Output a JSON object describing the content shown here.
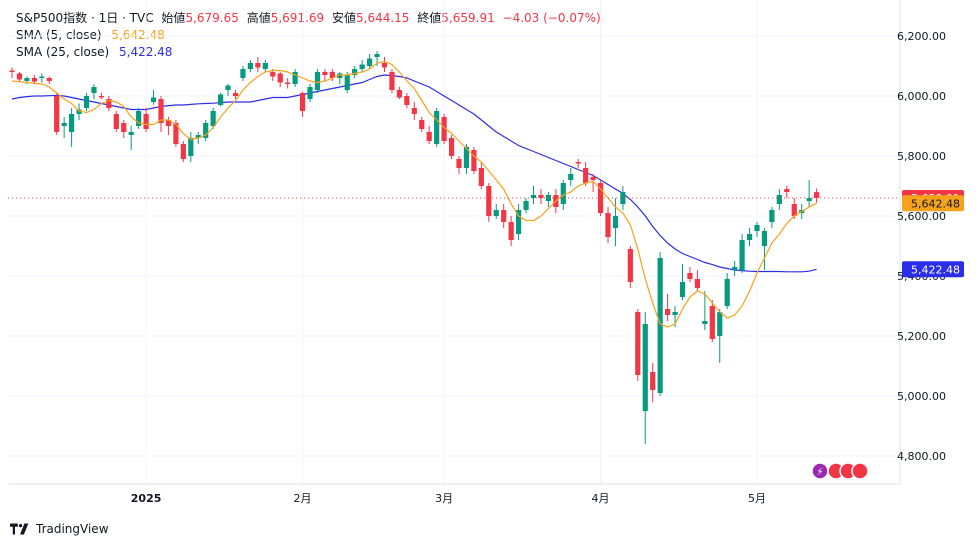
{
  "legend": {
    "symbol": "S&P500指数",
    "interval": "1日",
    "source": "TVC",
    "open_label": "始値",
    "open": "5,679.65",
    "high_label": "高値",
    "high": "5,691.69",
    "low_label": "安値",
    "low": "5,644.15",
    "close_label": "終値",
    "close": "5,659.91",
    "change": "−4.03 (−0.07%)",
    "sma5_label": "SMA (5, close)",
    "sma5_value": "5,642.48",
    "sma25_label": "SMA (25, close)",
    "sma25_value": "5,422.48"
  },
  "brand": {
    "name": "TradingView"
  },
  "colors": {
    "up": "#089981",
    "down": "#f23645",
    "sma5": "#f7a21b",
    "sma25": "#2a2ee8",
    "grid": "#f0f3fa",
    "price_line": "#f23645"
  },
  "chart_data": {
    "type": "candlestick",
    "y_axis": {
      "ticks": [
        4800,
        5000,
        5200,
        5400,
        5600,
        5800,
        6000,
        6200
      ],
      "range": [
        4700,
        6250
      ]
    },
    "y_tick_labels": [
      "4,800.00",
      "5,000.00",
      "5,200.00",
      "5,400.00",
      "5,600.00",
      "5,800.00",
      "6,000.00",
      "6,200.00"
    ],
    "x_axis": {
      "labels": [
        {
          "text": "2025",
          "index": 18
        },
        {
          "text": "2月",
          "index": 39
        },
        {
          "text": "3月",
          "index": 58
        },
        {
          "text": "4月",
          "index": 79
        },
        {
          "text": "5月",
          "index": 100
        }
      ]
    },
    "price_tags": {
      "last": "5,659.91",
      "sma5": "5,642.48",
      "sma25": "5,422.48"
    },
    "ohlc": [
      [
        6085,
        6095,
        6060,
        6080
      ],
      [
        6075,
        6080,
        6050,
        6055
      ],
      [
        6050,
        6065,
        6040,
        6060
      ],
      [
        6060,
        6070,
        6040,
        6048
      ],
      [
        6060,
        6075,
        6045,
        6065
      ],
      [
        6060,
        6065,
        6040,
        6050
      ],
      [
        6000,
        6010,
        5870,
        5880
      ],
      [
        5900,
        5930,
        5860,
        5910
      ],
      [
        5880,
        5960,
        5830,
        5940
      ],
      [
        5940,
        5975,
        5920,
        5955
      ],
      [
        5960,
        6010,
        5950,
        6000
      ],
      [
        6010,
        6040,
        5990,
        6030
      ],
      [
        6000,
        6010,
        5990,
        5995
      ],
      [
        5990,
        6000,
        5950,
        5960
      ],
      [
        5940,
        5950,
        5880,
        5890
      ],
      [
        5910,
        5920,
        5860,
        5880
      ],
      [
        5870,
        5900,
        5820,
        5880
      ],
      [
        5900,
        5960,
        5890,
        5950
      ],
      [
        5940,
        5960,
        5880,
        5890
      ],
      [
        5980,
        6020,
        5970,
        5995
      ],
      [
        5990,
        6000,
        5880,
        5910
      ],
      [
        5920,
        5930,
        5870,
        5900
      ],
      [
        5910,
        5920,
        5830,
        5840
      ],
      [
        5840,
        5850,
        5780,
        5790
      ],
      [
        5800,
        5880,
        5780,
        5860
      ],
      [
        5860,
        5880,
        5840,
        5870
      ],
      [
        5860,
        5920,
        5850,
        5910
      ],
      [
        5900,
        5960,
        5890,
        5950
      ],
      [
        5970,
        6010,
        5965,
        6005
      ],
      [
        6020,
        6040,
        6000,
        6035
      ],
      [
        6010,
        6020,
        5990,
        6000
      ],
      [
        6060,
        6100,
        6050,
        6090
      ],
      [
        6090,
        6120,
        6080,
        6110
      ],
      [
        6110,
        6130,
        6080,
        6095
      ],
      [
        6090,
        6120,
        6080,
        6110
      ],
      [
        6080,
        6090,
        6050,
        6065
      ],
      [
        6075,
        6080,
        6030,
        6045
      ],
      [
        6045,
        6060,
        6025,
        6040
      ],
      [
        6040,
        6090,
        6030,
        6080
      ],
      [
        6010,
        6015,
        5930,
        5950
      ],
      [
        5990,
        6040,
        5980,
        6030
      ],
      [
        6020,
        6090,
        6010,
        6080
      ],
      [
        6080,
        6090,
        6050,
        6070
      ],
      [
        6080,
        6090,
        6050,
        6060
      ],
      [
        6060,
        6080,
        6040,
        6075
      ],
      [
        6020,
        6080,
        6010,
        6070
      ],
      [
        6070,
        6100,
        6060,
        6090
      ],
      [
        6090,
        6120,
        6080,
        6105
      ],
      [
        6100,
        6140,
        6090,
        6125
      ],
      [
        6130,
        6150,
        6100,
        6140
      ],
      [
        6110,
        6130,
        6080,
        6095
      ],
      [
        6080,
        6090,
        6010,
        6020
      ],
      [
        6020,
        6030,
        5990,
        5995
      ],
      [
        6000,
        6010,
        5960,
        5970
      ],
      [
        5960,
        5980,
        5920,
        5940
      ],
      [
        5920,
        5930,
        5880,
        5890
      ],
      [
        5880,
        5900,
        5840,
        5850
      ],
      [
        5840,
        5960,
        5830,
        5950
      ],
      [
        5930,
        5940,
        5840,
        5850
      ],
      [
        5860,
        5870,
        5790,
        5800
      ],
      [
        5790,
        5800,
        5740,
        5760
      ],
      [
        5760,
        5840,
        5740,
        5830
      ],
      [
        5820,
        5830,
        5740,
        5750
      ],
      [
        5760,
        5780,
        5690,
        5700
      ],
      [
        5700,
        5710,
        5580,
        5600
      ],
      [
        5600,
        5640,
        5590,
        5620
      ],
      [
        5620,
        5640,
        5560,
        5580
      ],
      [
        5580,
        5600,
        5500,
        5520
      ],
      [
        5540,
        5640,
        5520,
        5620
      ],
      [
        5620,
        5660,
        5610,
        5650
      ],
      [
        5660,
        5700,
        5640,
        5670
      ],
      [
        5670,
        5690,
        5640,
        5660
      ],
      [
        5650,
        5680,
        5630,
        5670
      ],
      [
        5670,
        5690,
        5610,
        5630
      ],
      [
        5640,
        5720,
        5620,
        5710
      ],
      [
        5720,
        5760,
        5700,
        5740
      ],
      [
        5780,
        5790,
        5760,
        5775
      ],
      [
        5760,
        5780,
        5700,
        5710
      ],
      [
        5730,
        5740,
        5680,
        5720
      ],
      [
        5710,
        5720,
        5600,
        5610
      ],
      [
        5610,
        5630,
        5510,
        5530
      ],
      [
        5560,
        5660,
        5500,
        5600
      ],
      [
        5640,
        5700,
        5620,
        5680
      ],
      [
        5490,
        5500,
        5360,
        5380
      ],
      [
        5280,
        5290,
        5050,
        5070
      ],
      [
        4950,
        5280,
        4840,
        5240
      ],
      [
        5080,
        5110,
        4980,
        5020
      ],
      [
        5010,
        5480,
        5000,
        5460
      ],
      [
        5290,
        5340,
        5250,
        5270
      ],
      [
        5270,
        5300,
        5230,
        5280
      ],
      [
        5330,
        5440,
        5320,
        5380
      ],
      [
        5410,
        5430,
        5380,
        5390
      ],
      [
        5390,
        5420,
        5350,
        5360
      ],
      [
        5240,
        5350,
        5220,
        5250
      ],
      [
        5300,
        5320,
        5180,
        5190
      ],
      [
        5200,
        5290,
        5110,
        5280
      ],
      [
        5300,
        5410,
        5290,
        5390
      ],
      [
        5420,
        5450,
        5400,
        5430
      ],
      [
        5420,
        5540,
        5410,
        5520
      ],
      [
        5520,
        5560,
        5500,
        5540
      ],
      [
        5550,
        5580,
        5530,
        5570
      ],
      [
        5500,
        5560,
        5420,
        5550
      ],
      [
        5580,
        5630,
        5560,
        5620
      ],
      [
        5640,
        5690,
        5620,
        5670
      ],
      [
        5690,
        5700,
        5660,
        5680
      ],
      [
        5640,
        5660,
        5590,
        5600
      ],
      [
        5610,
        5640,
        5590,
        5620
      ],
      [
        5650,
        5720,
        5630,
        5660
      ],
      [
        5679.65,
        5691.69,
        5644.15,
        5659.91
      ]
    ],
    "sma5": [
      6050,
      6048,
      6045,
      6042,
      6040,
      6030,
      6010,
      5990,
      5975,
      5950,
      5945,
      5955,
      5975,
      5985,
      5980,
      5965,
      5930,
      5910,
      5905,
      5905,
      5920,
      5920,
      5905,
      5875,
      5855,
      5860,
      5870,
      5895,
      5930,
      5960,
      5985,
      6020,
      6045,
      6065,
      6080,
      6085,
      6085,
      6080,
      6070,
      6060,
      6050,
      6045,
      6050,
      6060,
      6070,
      6070,
      6075,
      6080,
      6090,
      6110,
      6115,
      6105,
      6080,
      6050,
      6025,
      5985,
      5945,
      5920,
      5895,
      5875,
      5850,
      5825,
      5800,
      5780,
      5750,
      5720,
      5690,
      5640,
      5600,
      5585,
      5585,
      5600,
      5625,
      5650,
      5670,
      5680,
      5700,
      5710,
      5715,
      5690,
      5660,
      5630,
      5610,
      5570,
      5490,
      5390,
      5310,
      5240,
      5230,
      5240,
      5290,
      5330,
      5350,
      5340,
      5310,
      5280,
      5260,
      5270,
      5300,
      5350,
      5410,
      5460,
      5510,
      5540,
      5575,
      5600,
      5615,
      5630,
      5642.48
    ],
    "sma25": [
      5990,
      5995,
      5998,
      6000,
      6000,
      6001,
      6002,
      6000,
      5995,
      5990,
      5985,
      5980,
      5975,
      5970,
      5965,
      5960,
      5955,
      5955,
      5955,
      5960,
      5965,
      5968,
      5970,
      5970,
      5972,
      5974,
      5975,
      5976,
      5978,
      5980,
      5980,
      5980,
      5980,
      5985,
      5990,
      5995,
      5995,
      5995,
      6000,
      6005,
      6010,
      6015,
      6020,
      6025,
      6030,
      6035,
      6040,
      6045,
      6055,
      6065,
      6070,
      6068,
      6065,
      6060,
      6050,
      6040,
      6030,
      6015,
      6000,
      5985,
      5970,
      5955,
      5940,
      5920,
      5900,
      5880,
      5865,
      5850,
      5835,
      5825,
      5815,
      5805,
      5795,
      5785,
      5775,
      5765,
      5755,
      5745,
      5735,
      5720,
      5705,
      5690,
      5675,
      5655,
      5630,
      5600,
      5565,
      5535,
      5510,
      5490,
      5475,
      5465,
      5455,
      5445,
      5438,
      5430,
      5425,
      5420,
      5418,
      5416,
      5415,
      5415,
      5415,
      5415,
      5414,
      5414,
      5414,
      5416,
      5422.48
    ]
  }
}
